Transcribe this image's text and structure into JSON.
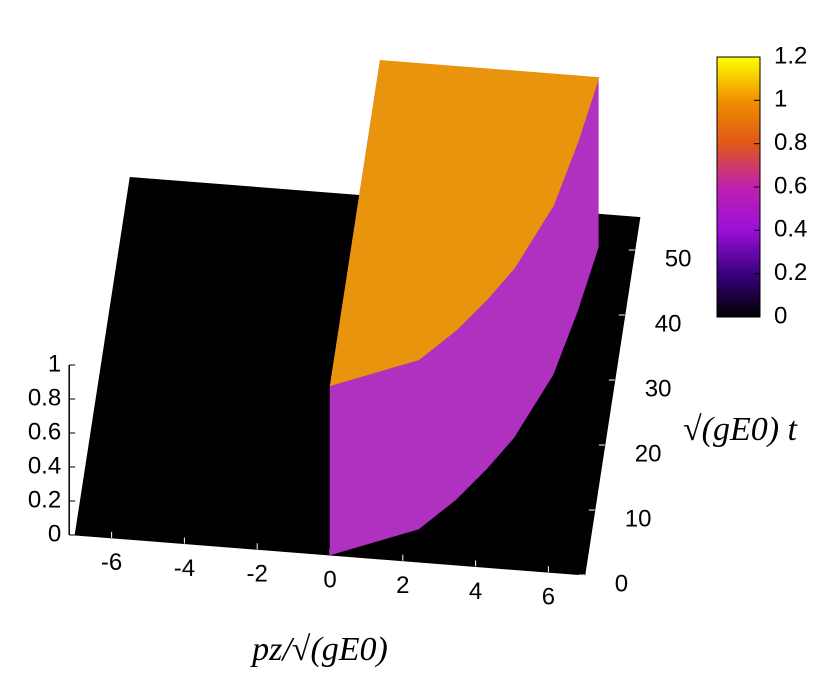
{
  "chart_data": {
    "type": "surface3d",
    "x_label": "pz/√(gE0)",
    "y_label": "√(gE0) t",
    "xlim": [
      -7,
      7
    ],
    "xticks": [
      -6,
      -4,
      -2,
      0,
      2,
      4,
      6
    ],
    "ylim": [
      0,
      55
    ],
    "yticks": [
      0,
      10,
      20,
      30,
      40,
      50
    ],
    "zlim": [
      0,
      1
    ],
    "zticks": [
      0,
      0.2,
      0.4,
      0.6,
      0.8,
      1
    ],
    "surface": {
      "t": [
        0,
        5,
        10,
        15,
        20,
        25,
        30,
        35,
        40,
        45,
        50
      ],
      "front": [
        0,
        2.3,
        3.2,
        3.9,
        4.5,
        4.9,
        5.3,
        5.5,
        5.7,
        5.85,
        6
      ],
      "height": 1,
      "floor": 0
    },
    "colorbar": {
      "lim": [
        0,
        1.2
      ],
      "ticks": [
        0,
        0.2,
        0.4,
        0.6,
        0.8,
        1,
        1.2
      ],
      "colors": [
        "#000000",
        "#3a0080",
        "#9a10d8",
        "#c020b0",
        "#e05818",
        "#f09000",
        "#ffff00"
      ]
    },
    "floor_color": "#000000",
    "top_color": "#e8940c",
    "wall_color": "#b030c0"
  }
}
